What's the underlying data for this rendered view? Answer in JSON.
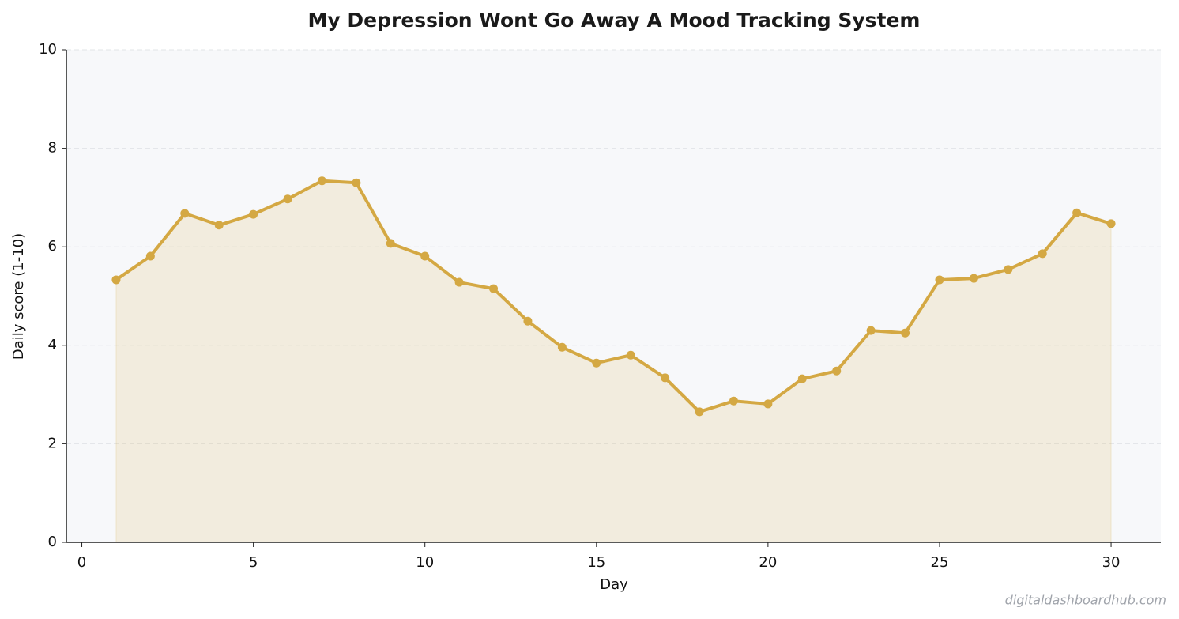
{
  "chart_data": {
    "type": "line",
    "title": "My Depression Wont Go Away  A Mood Tracking System",
    "x_label": "Day",
    "y_label": "Daily score (1-10)",
    "x": [
      1,
      2,
      3,
      4,
      5,
      6,
      7,
      8,
      9,
      10,
      11,
      12,
      13,
      14,
      15,
      16,
      17,
      18,
      19,
      20,
      21,
      22,
      23,
      24,
      25,
      26,
      27,
      28,
      29,
      30
    ],
    "values": [
      5.33,
      5.81,
      6.68,
      6.44,
      6.66,
      6.97,
      7.34,
      7.3,
      6.07,
      5.81,
      5.28,
      5.15,
      4.49,
      3.96,
      3.64,
      3.8,
      3.34,
      2.65,
      2.87,
      2.81,
      3.32,
      3.48,
      4.3,
      4.25,
      5.33,
      5.36,
      5.54,
      5.86,
      6.69,
      6.47
    ],
    "color": "#d4a843",
    "xlim": [
      -0.45,
      31.45
    ],
    "xticks": [
      0,
      5,
      10,
      15,
      20,
      25,
      30
    ],
    "ylim": [
      0,
      10
    ],
    "yticks": [
      0,
      2,
      4,
      6,
      8,
      10
    ],
    "grid": true,
    "fill_area": true,
    "watermark": "digitaldashboardhub.com"
  }
}
